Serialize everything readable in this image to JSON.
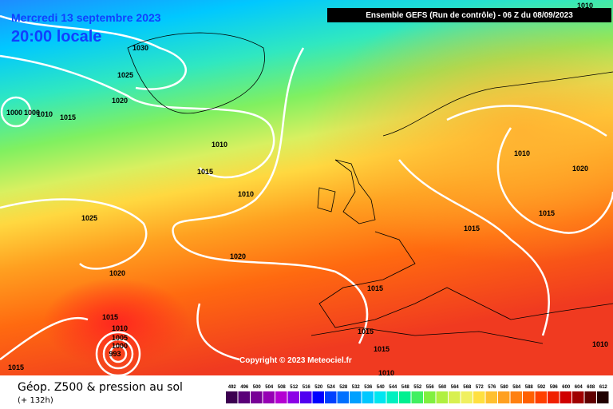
{
  "header": {
    "date": "Mercredi 13 septembre 2023",
    "time": "20:00 locale",
    "run": "Ensemble GEFS  (Run de contrôle)  -  06 Z du 08/09/2023"
  },
  "map": {
    "copyright": "Copyright © 2023 Meteociel.fr",
    "isobar_labels": [
      "1010",
      "1030",
      "1025",
      "1020",
      "1000",
      "1000",
      "1010",
      "1015",
      "1010",
      "1015",
      "1010",
      "1025",
      "1020",
      "1020",
      "1015",
      "1015",
      "1010",
      "1005",
      "1000",
      "993",
      "1015",
      "1015",
      "1015",
      "1010",
      "1010",
      "1020",
      "1015",
      "1015",
      "1010"
    ]
  },
  "footer": {
    "title": "Géop. Z500 & pression au sol",
    "lead": "(+ 132h)"
  },
  "legend": {
    "labels": [
      "492",
      "496",
      "500",
      "504",
      "508",
      "512",
      "516",
      "520",
      "524",
      "528",
      "532",
      "536",
      "540",
      "544",
      "548",
      "552",
      "556",
      "560",
      "564",
      "568",
      "572",
      "576",
      "580",
      "584",
      "588",
      "592",
      "596",
      "600",
      "604",
      "608",
      "612"
    ],
    "colors": [
      "#3c0050",
      "#5a0078",
      "#780096",
      "#9600b4",
      "#b400d2",
      "#8c00e6",
      "#5000f0",
      "#0000ff",
      "#0040ff",
      "#0070ff",
      "#00a0ff",
      "#00c8ff",
      "#00e6f0",
      "#00f0c0",
      "#00f090",
      "#40f060",
      "#80f040",
      "#b0f040",
      "#d8f050",
      "#f0f060",
      "#ffe040",
      "#ffc030",
      "#ffa020",
      "#ff8010",
      "#ff6000",
      "#ff4000",
      "#f02000",
      "#d00000",
      "#a00000",
      "#600000",
      "#200000"
    ]
  }
}
